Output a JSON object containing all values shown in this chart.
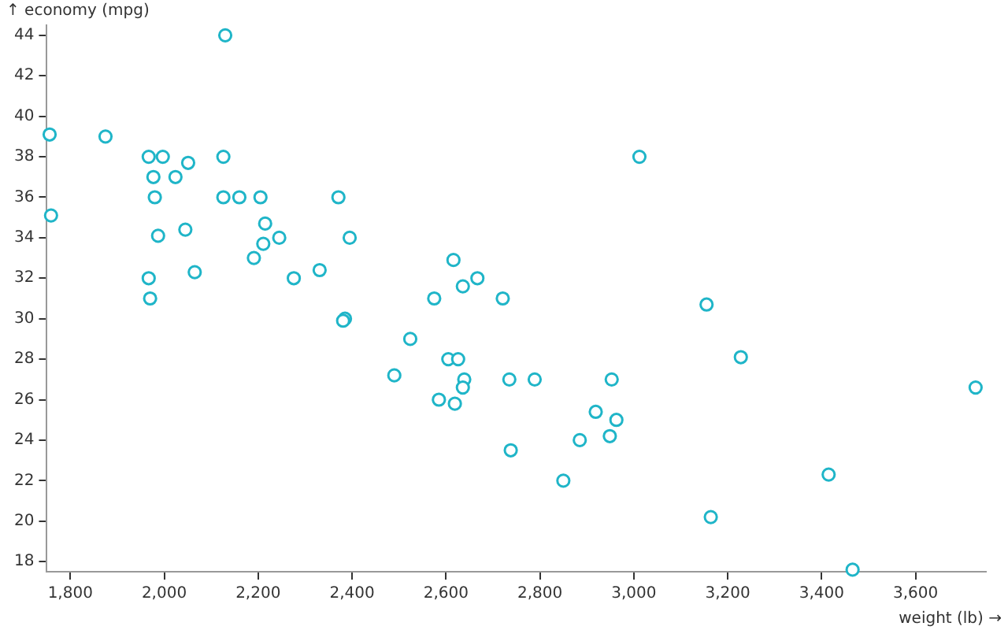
{
  "chart_data": {
    "type": "scatter",
    "xlabel": "weight (lb) →",
    "ylabel": "↑ economy (mpg)",
    "x": [
      2130,
      1756,
      1875,
      1967,
      1997,
      2051,
      1977,
      2024,
      2126,
      1980,
      2126,
      2160,
      2205,
      2371,
      1759,
      2045,
      2215,
      1987,
      2211,
      2245,
      2395,
      2191,
      2616,
      1967,
      2065,
      2276,
      2331,
      2667,
      2636,
      1970,
      2575,
      3012,
      2721,
      3155,
      2385,
      2381,
      2524,
      2605,
      2626,
      2490,
      2639,
      2636,
      2585,
      2619,
      2735,
      2789,
      2953,
      3228,
      3728,
      2919,
      2963,
      2949,
      2885,
      2738,
      2850,
      3415,
      3164,
      3466
    ],
    "series": [
      {
        "color": "#1fb5c8",
        "values": [
          44.0,
          39.1,
          39.0,
          38.0,
          38.0,
          37.7,
          37.0,
          37.0,
          38.0,
          36.0,
          36.0,
          36.0,
          36.0,
          36.0,
          35.1,
          34.4,
          34.7,
          34.1,
          33.7,
          34.0,
          34.0,
          33.0,
          32.9,
          32.0,
          32.3,
          32.0,
          32.4,
          32.0,
          31.6,
          31.0,
          31.0,
          38.0,
          31.0,
          30.7,
          30.0,
          29.9,
          29.0,
          28.0,
          28.0,
          27.2,
          27.0,
          26.6,
          26.0,
          25.8,
          27.0,
          27.0,
          27.0,
          28.1,
          26.6,
          25.4,
          25.0,
          24.2,
          24.0,
          23.5,
          22.0,
          22.3,
          20.2,
          17.6
        ]
      }
    ],
    "xticks": [
      {
        "value": 1800,
        "label": "1,800"
      },
      {
        "value": 2000,
        "label": "2,000"
      },
      {
        "value": 2200,
        "label": "2,200"
      },
      {
        "value": 2400,
        "label": "2,400"
      },
      {
        "value": 2600,
        "label": "2,600"
      },
      {
        "value": 2800,
        "label": "2,800"
      },
      {
        "value": 3000,
        "label": "3,000"
      },
      {
        "value": 3200,
        "label": "3,200"
      },
      {
        "value": 3400,
        "label": "3,400"
      },
      {
        "value": 3600,
        "label": "3,600"
      }
    ],
    "xlim": [
      1750,
      3750
    ],
    "ylim": [
      17.5,
      44.5
    ],
    "yticks": [
      18,
      20,
      22,
      24,
      26,
      28,
      30,
      32,
      34,
      36,
      38,
      40,
      42,
      44
    ],
    "grid": false,
    "marker": "circle"
  }
}
